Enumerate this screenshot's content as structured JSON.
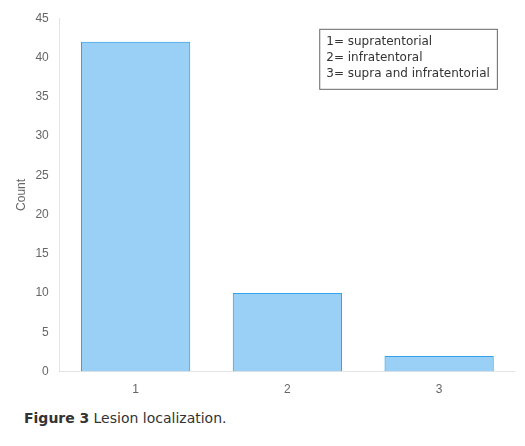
{
  "chart_data": {
    "type": "bar",
    "categories": [
      1,
      2,
      3
    ],
    "values": [
      42,
      10,
      2
    ],
    "ylabel": "Count",
    "ylim": [
      0,
      45
    ],
    "yticks": [
      0,
      5,
      10,
      15,
      20,
      25,
      30,
      35,
      40,
      45
    ],
    "grid": false,
    "annotations": [
      "1= supratentorial",
      "2= infratentoral",
      "3= supra and infratentorial"
    ],
    "caption_label": "Figure 3",
    "caption": "Lesion localization."
  }
}
